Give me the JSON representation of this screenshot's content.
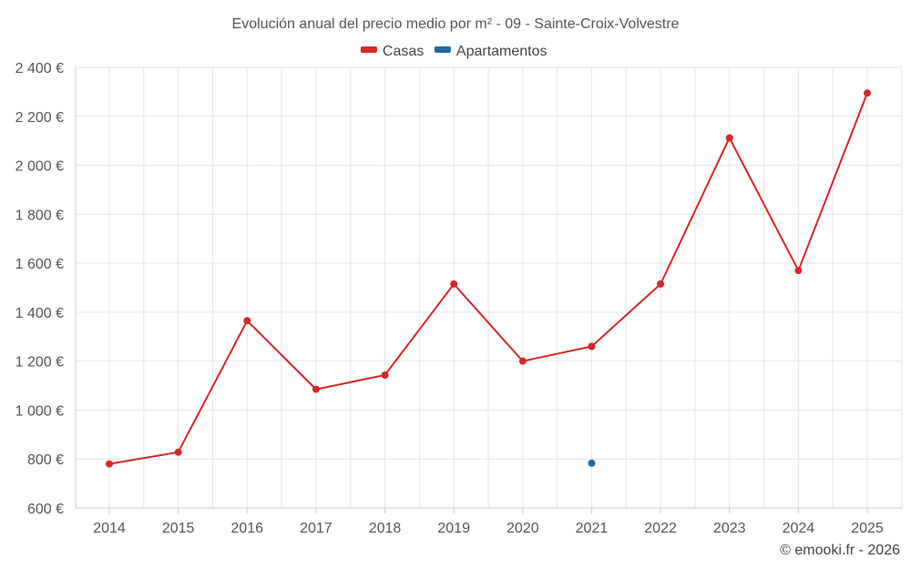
{
  "chart_data": {
    "type": "line",
    "title": "Evolución anual del precio medio por m² - 09 - Sainte-Croix-Volvestre",
    "xlabel": "",
    "ylabel": "",
    "x": [
      "2014",
      "2015",
      "2016",
      "2017",
      "2018",
      "2019",
      "2020",
      "2021",
      "2022",
      "2023",
      "2024",
      "2025"
    ],
    "ylim": [
      600,
      2400
    ],
    "yticks": [
      {
        "value": 600,
        "label": "600 €"
      },
      {
        "value": 800,
        "label": "800 €"
      },
      {
        "value": 1000,
        "label": "1 000 €"
      },
      {
        "value": 1200,
        "label": "1 200 €"
      },
      {
        "value": 1400,
        "label": "1 400 €"
      },
      {
        "value": 1600,
        "label": "1 600 €"
      },
      {
        "value": 1800,
        "label": "1 800 €"
      },
      {
        "value": 2000,
        "label": "2 000 €"
      },
      {
        "value": 2200,
        "label": "2 200 €"
      },
      {
        "value": 2400,
        "label": "2 400 €"
      }
    ],
    "grid": true,
    "legend": "top-center",
    "series": [
      {
        "name": "Casas",
        "color": "#d62728",
        "values": [
          780,
          828,
          1365,
          1085,
          1143,
          1515,
          1200,
          1260,
          1515,
          2112,
          1570,
          2295
        ]
      },
      {
        "name": "Apartamentos",
        "color": "#1f6aa5",
        "values": [
          null,
          null,
          null,
          null,
          null,
          null,
          null,
          783,
          null,
          null,
          null,
          null
        ]
      }
    ]
  },
  "credit": "© emooki.fr - 2026"
}
